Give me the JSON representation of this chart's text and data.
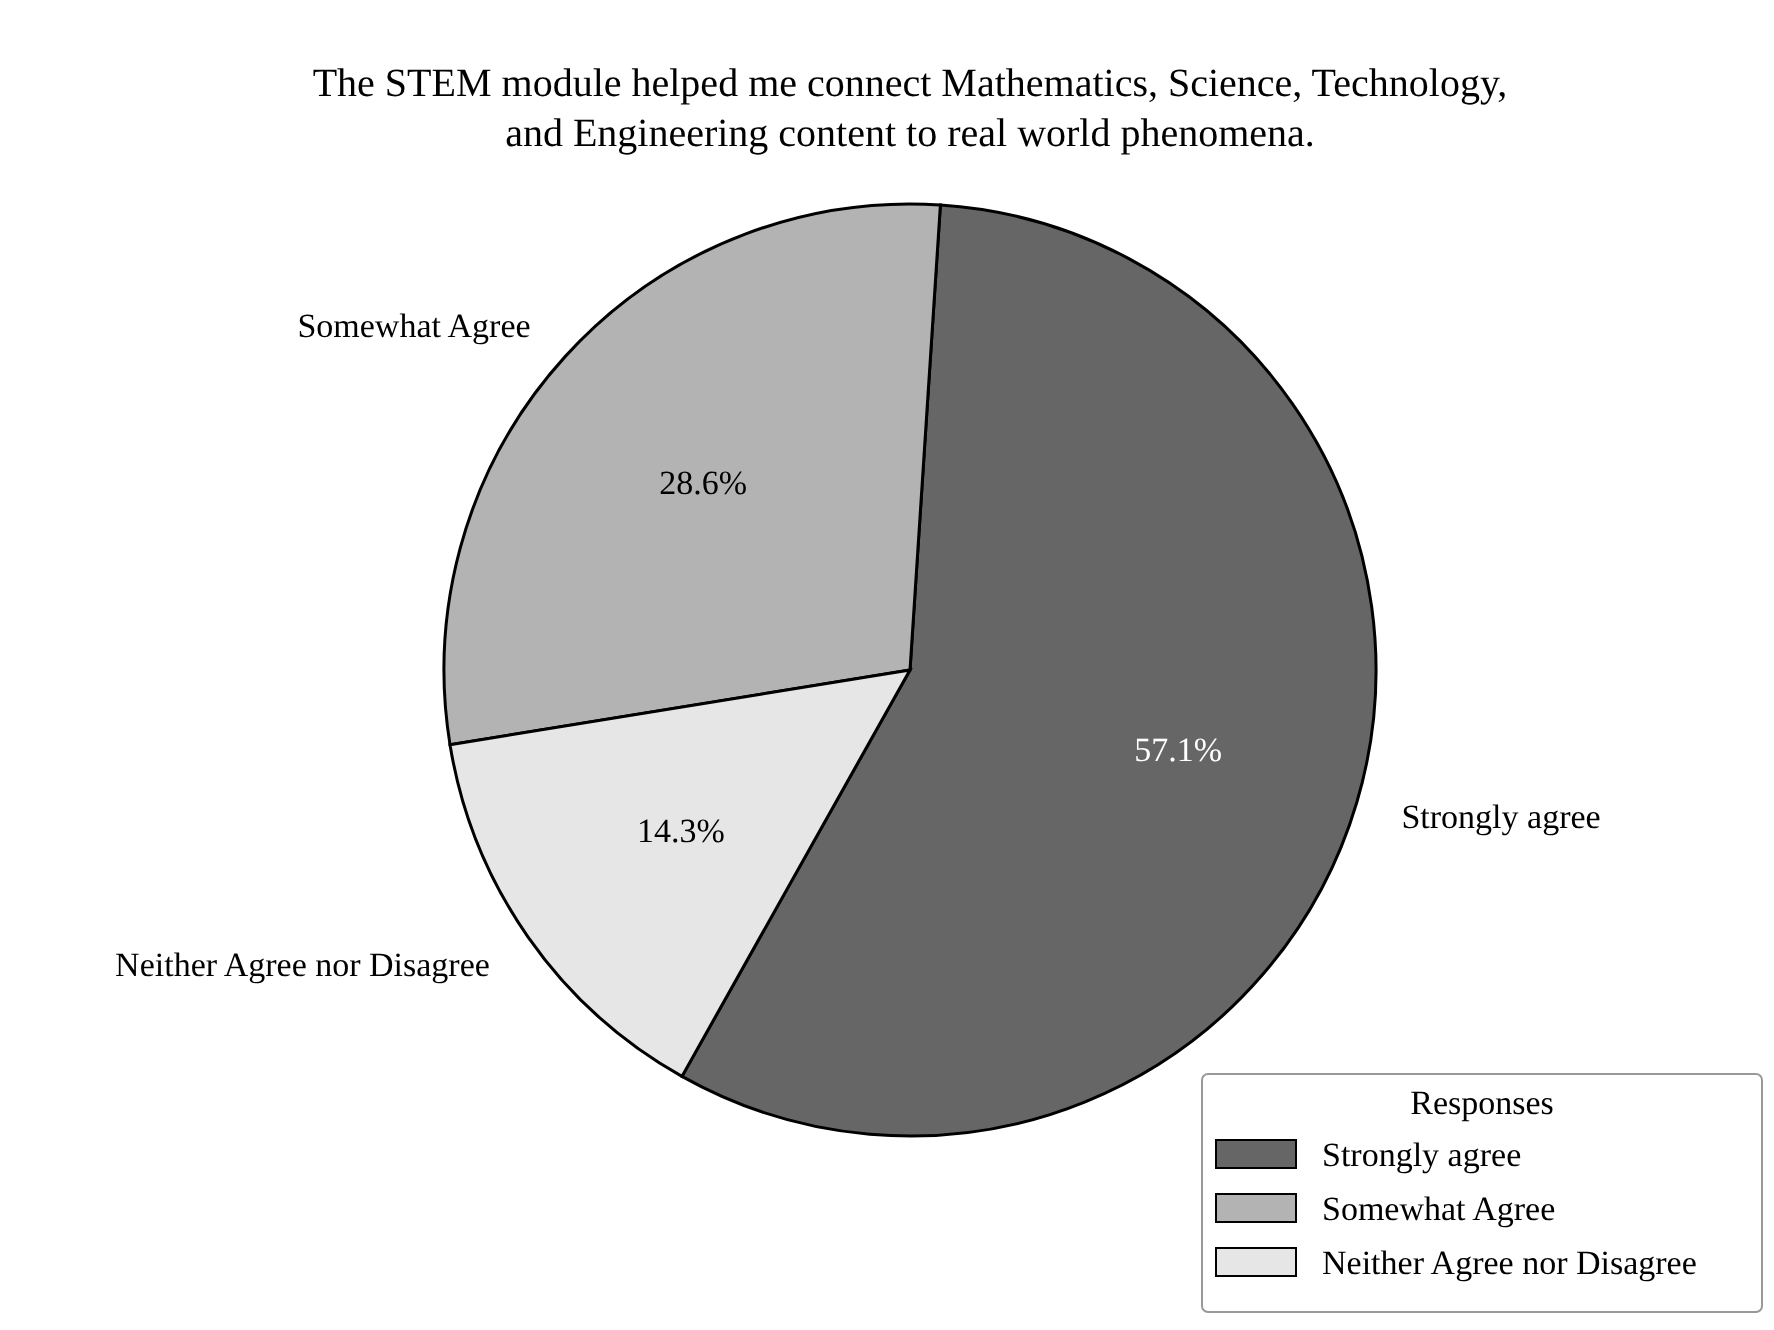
{
  "chart_data": {
    "type": "pie",
    "title": "The STEM module helped me connect Mathematics, Science, Technology, and Engineering content to real world phenomena.",
    "legend_title": "Responses",
    "categories": [
      "Strongly agree",
      "Somewhat Agree",
      "Neither Agree nor Disagree"
    ],
    "values": [
      57.1,
      28.6,
      14.3
    ],
    "value_labels": [
      "57.1%",
      "28.6%",
      "14.3%"
    ],
    "colors": [
      "#666666",
      "#b3b3b3",
      "#e6e6e6"
    ],
    "legend": "bottom right"
  }
}
